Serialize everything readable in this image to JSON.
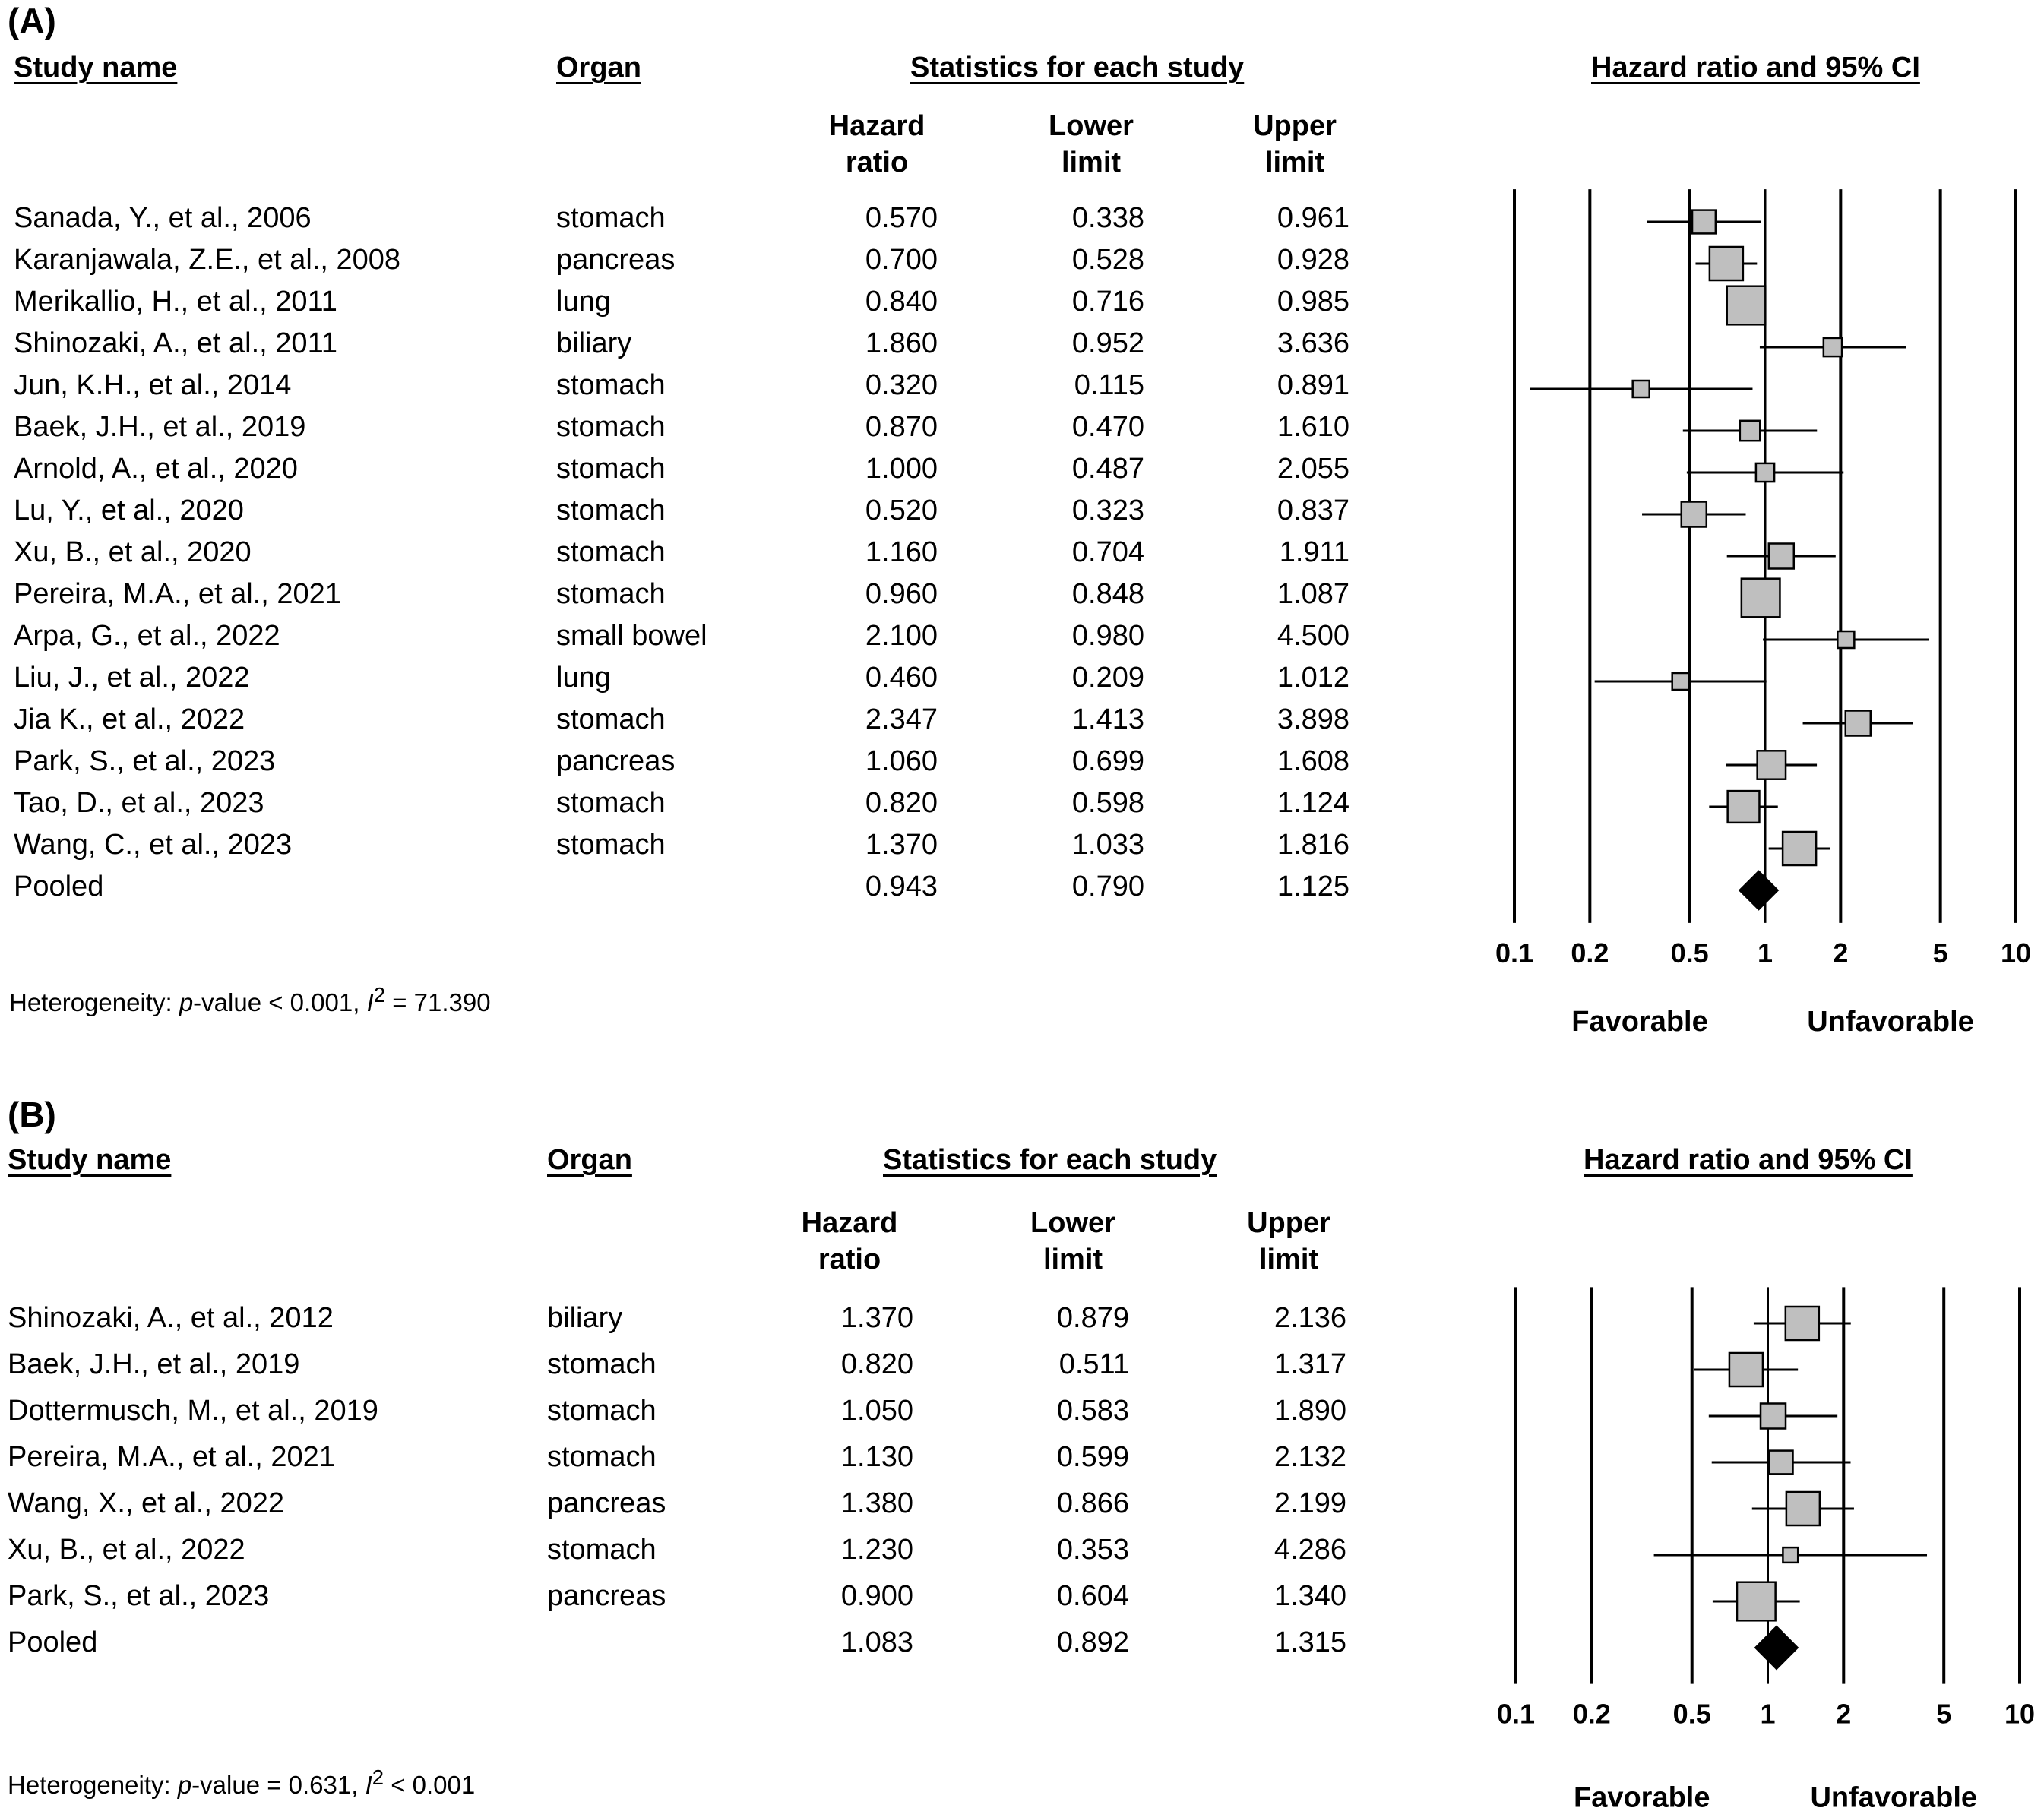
{
  "chart_data": [
    {
      "type": "forest",
      "panel_label": "(A)",
      "headers": {
        "study": "Study name",
        "organ": "Organ",
        "stats": "Statistics for each study",
        "plot": "Hazard ratio and 95% CI",
        "hr": [
          "Hazard",
          "ratio"
        ],
        "lower": [
          "Lower",
          "limit"
        ],
        "upper": [
          "Upper",
          "limit"
        ]
      },
      "rows": [
        {
          "study": "Sanada, Y., et al., 2006",
          "organ": "stomach",
          "hr": "0.570",
          "lower": "0.338",
          "upper": "0.961",
          "weight": 0.7
        },
        {
          "study": "Karanjawala, Z.E., et al., 2008",
          "organ": "pancreas",
          "hr": "0.700",
          "lower": "0.528",
          "upper": "0.928",
          "weight": 1.0
        },
        {
          "study": "Merikallio, H., et al., 2011",
          "organ": "lung",
          "hr": "0.840",
          "lower": "0.716",
          "upper": "0.985",
          "weight": 1.15
        },
        {
          "study": "Shinozaki, A., et al., 2011",
          "organ": "biliary",
          "hr": "1.860",
          "lower": "0.952",
          "upper": "3.636",
          "weight": 0.55
        },
        {
          "study": "Jun, K.H., et al., 2014",
          "organ": "stomach",
          "hr": "0.320",
          "lower": "0.115",
          "upper": "0.891",
          "weight": 0.5
        },
        {
          "study": "Baek, J.H., et al., 2019",
          "organ": "stomach",
          "hr": "0.870",
          "lower": "0.470",
          "upper": "1.610",
          "weight": 0.6
        },
        {
          "study": "Arnold, A., et al., 2020",
          "organ": "stomach",
          "hr": "1.000",
          "lower": "0.487",
          "upper": "2.055",
          "weight": 0.55
        },
        {
          "study": "Lu, Y., et al., 2020",
          "organ": "stomach",
          "hr": "0.520",
          "lower": "0.323",
          "upper": "0.837",
          "weight": 0.75
        },
        {
          "study": "Xu, B., et al., 2020",
          "organ": "stomach",
          "hr": "1.160",
          "lower": "0.704",
          "upper": "1.911",
          "weight": 0.75
        },
        {
          "study": "Pereira, M.A., et al., 2021",
          "organ": "stomach",
          "hr": "0.960",
          "lower": "0.848",
          "upper": "1.087",
          "weight": 1.15
        },
        {
          "study": "Arpa, G., et al., 2022",
          "organ": "small bowel",
          "hr": "2.100",
          "lower": "0.980",
          "upper": "4.500",
          "weight": 0.5
        },
        {
          "study": "Liu, J., et al., 2022",
          "organ": "lung",
          "hr": "0.460",
          "lower": "0.209",
          "upper": "1.012",
          "weight": 0.5
        },
        {
          "study": "Jia K., et al., 2022",
          "organ": "stomach",
          "hr": "2.347",
          "lower": "1.413",
          "upper": "3.898",
          "weight": 0.75
        },
        {
          "study": "Park, S., et al., 2023",
          "organ": "pancreas",
          "hr": "1.060",
          "lower": "0.699",
          "upper": "1.608",
          "weight": 0.85
        },
        {
          "study": "Tao, D., et al., 2023",
          "organ": "stomach",
          "hr": "0.820",
          "lower": "0.598",
          "upper": "1.124",
          "weight": 0.95
        },
        {
          "study": "Wang, C., et al., 2023",
          "organ": "stomach",
          "hr": "1.370",
          "lower": "1.033",
          "upper": "1.816",
          "weight": 1.0
        }
      ],
      "pooled": {
        "study": "Pooled",
        "hr": "0.943",
        "lower": "0.790",
        "upper": "1.125"
      },
      "x_scale": "log",
      "xlim": [
        0.1,
        10
      ],
      "x_ticks": [
        "0.1",
        "0.2",
        "0.5",
        "1",
        "2",
        "5",
        "10"
      ],
      "direction_labels": [
        "Favorable",
        "Unfavorable"
      ],
      "heterogeneity": {
        "prefix": "Heterogeneity: ",
        "p_label": "p",
        "p_text": "-value < 0.001, ",
        "i2_label": "I",
        "i2_sup": "2",
        "i2_text": " = 71.390"
      }
    },
    {
      "type": "forest",
      "panel_label": "(B)",
      "headers": {
        "study": "Study name",
        "organ": "Organ",
        "stats": "Statistics for each study",
        "plot": "Hazard ratio and 95% CI",
        "hr": [
          "Hazard",
          "ratio"
        ],
        "lower": [
          "Lower",
          "limit"
        ],
        "upper": [
          "Upper",
          "limit"
        ]
      },
      "rows": [
        {
          "study": "Shinozaki, A., et al., 2012",
          "organ": "biliary",
          "hr": "1.370",
          "lower": "0.879",
          "upper": "2.136",
          "weight": 1.0
        },
        {
          "study": "Baek, J.H., et al., 2019",
          "organ": "stomach",
          "hr": "0.820",
          "lower": "0.511",
          "upper": "1.317",
          "weight": 1.0
        },
        {
          "study": "Dottermusch, M., et al., 2019",
          "organ": "stomach",
          "hr": "1.050",
          "lower": "0.583",
          "upper": "1.890",
          "weight": 0.75
        },
        {
          "study": "Pereira, M.A., et al., 2021",
          "organ": "stomach",
          "hr": "1.130",
          "lower": "0.599",
          "upper": "2.132",
          "weight": 0.7
        },
        {
          "study": "Wang, X., et al., 2022",
          "organ": "pancreas",
          "hr": "1.380",
          "lower": "0.866",
          "upper": "2.199",
          "weight": 1.0
        },
        {
          "study": "Xu, B., et al., 2022",
          "organ": "stomach",
          "hr": "1.230",
          "lower": "0.353",
          "upper": "4.286",
          "weight": 0.45
        },
        {
          "study": "Park, S., et al., 2023",
          "organ": "pancreas",
          "hr": "0.900",
          "lower": "0.604",
          "upper": "1.340",
          "weight": 1.15
        }
      ],
      "pooled": {
        "study": "Pooled",
        "hr": "1.083",
        "lower": "0.892",
        "upper": "1.315"
      },
      "x_scale": "log",
      "xlim": [
        0.1,
        10
      ],
      "x_ticks": [
        "0.1",
        "0.2",
        "0.5",
        "1",
        "2",
        "5",
        "10"
      ],
      "direction_labels": [
        "Favorable",
        "Unfavorable"
      ],
      "heterogeneity": {
        "prefix": "Heterogeneity: ",
        "p_label": "p",
        "p_text": "-value = 0.631, ",
        "i2_label": "I",
        "i2_sup": "2",
        "i2_text": " < 0.001"
      }
    }
  ]
}
